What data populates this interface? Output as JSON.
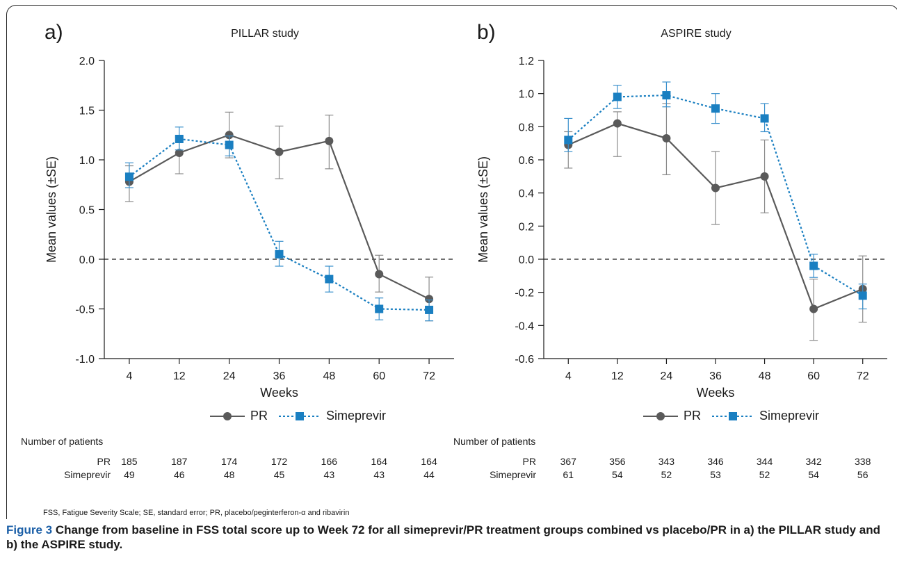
{
  "panels": [
    {
      "letter": "a)",
      "title": "PILLAR study",
      "ylabel": "Mean values (±SE)",
      "xlabel": "Weeks",
      "legend": [
        "PR",
        "Simeprevir"
      ],
      "patients_header": "Number of patients",
      "patients": [
        {
          "label": "PR",
          "values": [
            "185",
            "187",
            "174",
            "172",
            "166",
            "164",
            "164"
          ]
        },
        {
          "label": "Simeprevir",
          "values": [
            "49",
            "46",
            "48",
            "45",
            "43",
            "43",
            "44"
          ]
        }
      ]
    },
    {
      "letter": "b)",
      "title": "ASPIRE study",
      "ylabel": "Mean values (±SE)",
      "xlabel": "Weeks",
      "legend": [
        "PR",
        "Simeprevir"
      ],
      "patients_header": "Number of patients",
      "patients": [
        {
          "label": "PR",
          "values": [
            "367",
            "356",
            "343",
            "346",
            "344",
            "342",
            "338"
          ]
        },
        {
          "label": "Simeprevir",
          "values": [
            "61",
            "54",
            "52",
            "53",
            "52",
            "54",
            "56"
          ]
        }
      ]
    }
  ],
  "chart_data": [
    {
      "type": "line",
      "title": "PILLAR study",
      "xlabel": "Weeks",
      "ylabel": "Mean values (±SE)",
      "categories": [
        "4",
        "12",
        "24",
        "36",
        "48",
        "60",
        "72"
      ],
      "ylim": [
        -1.0,
        2.0
      ],
      "yticks": [
        "2.0",
        "1.5",
        "1.0",
        "0.5",
        "0.0",
        "-0.5",
        "-1.0"
      ],
      "ytick_values": [
        2.0,
        1.5,
        1.0,
        0.5,
        0.0,
        -0.5,
        -1.0
      ],
      "reference_line": 0.0,
      "series": [
        {
          "name": "PR",
          "color": "#5a5a5a",
          "values": [
            0.78,
            1.07,
            1.25,
            1.08,
            1.19,
            -0.15,
            -0.4
          ],
          "err_low": [
            0.58,
            0.86,
            1.02,
            0.81,
            0.91,
            -0.33,
            -0.62
          ],
          "err_high": [
            0.94,
            1.23,
            1.48,
            1.34,
            1.45,
            0.04,
            -0.18
          ]
        },
        {
          "name": "Simeprevir",
          "color": "#1a7fc1",
          "values": [
            0.83,
            1.21,
            1.15,
            0.05,
            -0.2,
            -0.5,
            -0.51
          ],
          "err_low": [
            0.72,
            1.1,
            1.04,
            -0.07,
            -0.33,
            -0.61,
            -0.62
          ],
          "err_high": [
            0.97,
            1.33,
            1.24,
            0.18,
            -0.07,
            -0.39,
            -0.41
          ]
        }
      ],
      "legend_position": "bottom"
    },
    {
      "type": "line",
      "title": "ASPIRE study",
      "xlabel": "Weeks",
      "ylabel": "Mean values (±SE)",
      "categories": [
        "4",
        "12",
        "24",
        "36",
        "48",
        "60",
        "72"
      ],
      "ylim": [
        -0.6,
        1.2
      ],
      "yticks": [
        "1.2",
        "1.0",
        "0.8",
        "0.6",
        "0.4",
        "0.2",
        "0.0",
        "-0.2",
        "-0.4",
        "-0.6"
      ],
      "ytick_values": [
        1.2,
        1.0,
        0.8,
        0.6,
        0.4,
        0.2,
        0.0,
        -0.2,
        -0.4,
        -0.6
      ],
      "reference_line": 0.0,
      "series": [
        {
          "name": "PR",
          "color": "#5a5a5a",
          "values": [
            0.69,
            0.82,
            0.73,
            0.43,
            0.5,
            -0.3,
            -0.18
          ],
          "err_low": [
            0.55,
            0.62,
            0.51,
            0.21,
            0.28,
            -0.49,
            -0.38
          ],
          "err_high": [
            0.77,
            0.89,
            0.94,
            0.65,
            0.72,
            -0.12,
            0.02
          ]
        },
        {
          "name": "Simeprevir",
          "color": "#1a7fc1",
          "values": [
            0.72,
            0.98,
            0.99,
            0.91,
            0.85,
            -0.04,
            -0.22
          ],
          "err_low": [
            0.65,
            0.91,
            0.92,
            0.82,
            0.77,
            -0.11,
            -0.3
          ],
          "err_high": [
            0.85,
            1.05,
            1.07,
            1.0,
            0.94,
            0.03,
            -0.15
          ]
        }
      ],
      "legend_position": "bottom"
    }
  ],
  "footnote": "FSS, Fatigue Severity Scale; SE, standard error; PR, placebo/peginterferon-α and ribavirin",
  "caption_lead": "Figure 3",
  "caption_text": "Change from baseline in FSS total score up to Week 72 for all simeprevir/PR treatment groups combined vs placebo/PR in a) the PILLAR study and b) the ASPIRE study."
}
